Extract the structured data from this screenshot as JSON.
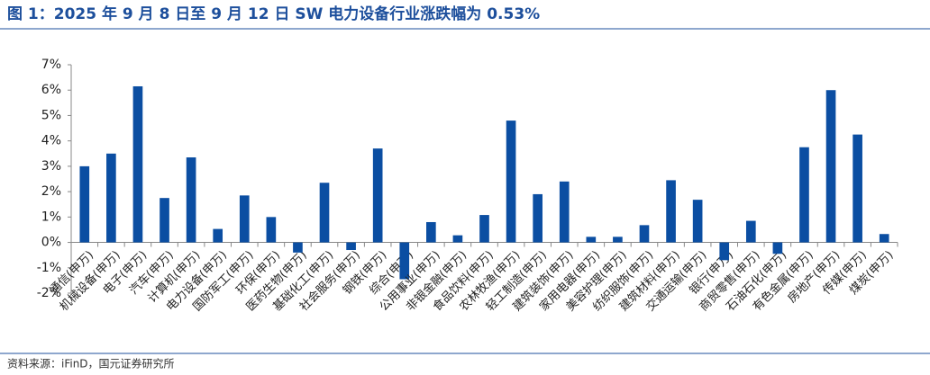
{
  "chart_data": {
    "type": "bar",
    "title": "图 1：2025 年 9 月 8 日至 9 月 12 日 SW 电力设备行业涨跌幅为 0.53%",
    "source": "资料来源：iFinD，国元证券研究所",
    "categories": [
      "通信(申万)",
      "机械设备(申万)",
      "电子(申万)",
      "汽车(申万)",
      "计算机(申万)",
      "电力设备(申万)",
      "国防军工(申万)",
      "环保(申万)",
      "医药生物(申万)",
      "基础化工(申万)",
      "社会服务(申万)",
      "钢铁(申万)",
      "综合(申万)",
      "公用事业(申万)",
      "非银金融(申万)",
      "食品饮料(申万)",
      "农林牧渔(申万)",
      "轻工制造(申万)",
      "建筑装饰(申万)",
      "家用电器(申万)",
      "美容护理(申万)",
      "纺织服饰(申万)",
      "建筑材料(申万)",
      "交通运输(申万)",
      "银行(申万)",
      "商贸零售(申万)",
      "石油石化(申万)",
      "有色金属(申万)",
      "房地产(申万)",
      "传媒(申万)",
      "煤炭(申万)"
    ],
    "values": [
      3.0,
      3.5,
      6.15,
      1.75,
      3.35,
      0.53,
      1.85,
      1.0,
      -0.4,
      2.35,
      -0.3,
      3.7,
      -1.45,
      0.8,
      0.28,
      1.08,
      4.8,
      1.9,
      2.4,
      0.22,
      0.22,
      0.68,
      2.45,
      1.68,
      -0.7,
      0.85,
      -0.45,
      3.75,
      6.0,
      4.25,
      0.33
    ],
    "color": "#0b4ea2",
    "ylim": [
      -2,
      7
    ],
    "yticks": [
      {
        "value": -2,
        "label": "-2%"
      },
      {
        "value": -1,
        "label": "-1%"
      },
      {
        "value": 0,
        "label": "0%"
      },
      {
        "value": 1,
        "label": "1%"
      },
      {
        "value": 2,
        "label": "2%"
      },
      {
        "value": 3,
        "label": "3%"
      },
      {
        "value": 4,
        "label": "4%"
      },
      {
        "value": 5,
        "label": "5%"
      },
      {
        "value": 6,
        "label": "6%"
      },
      {
        "value": 7,
        "label": "7%"
      }
    ],
    "grid": false
  }
}
